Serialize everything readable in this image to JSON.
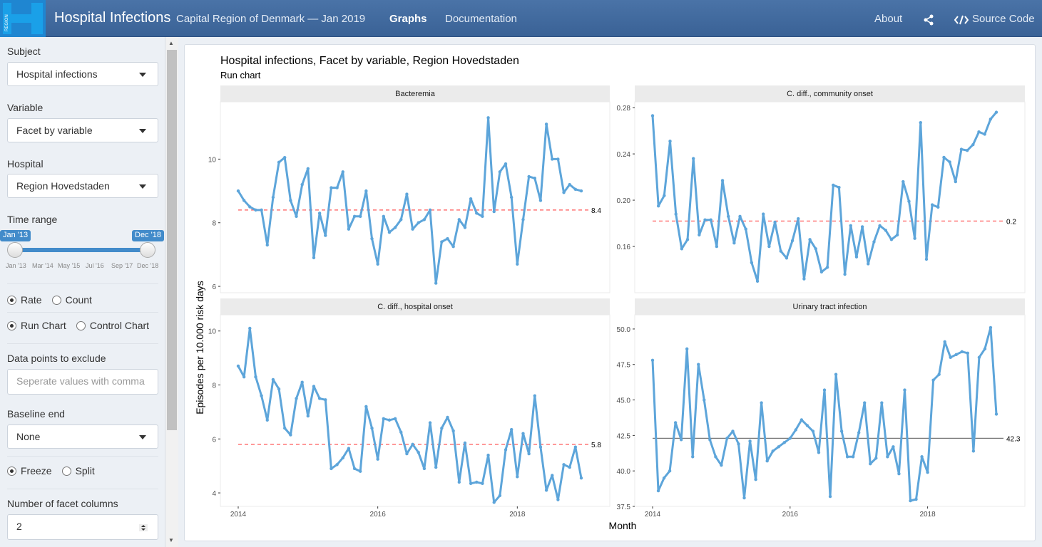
{
  "navbar": {
    "brand": "Hospital Infections",
    "subtitle": "Capital Region of Denmark — Jan 2019",
    "tabs": [
      {
        "label": "Graphs"
      },
      {
        "label": "Documentation"
      }
    ],
    "about": "About",
    "source": "Source Code",
    "logo_text": "REGION",
    "accent": "#3a6296"
  },
  "sidebar": {
    "subject_label": "Subject",
    "subject_value": "Hospital infections",
    "variable_label": "Variable",
    "variable_value": "Facet by variable",
    "hospital_label": "Hospital",
    "hospital_value": "Region Hovedstaden",
    "time_label": "Time range",
    "time_from": "Jan '13",
    "time_to": "Dec '18",
    "time_ticks": [
      "Jan '13",
      "Mar '14",
      "May '15",
      "Jul '16",
      "Sep '17",
      "Dec '18"
    ],
    "measure": [
      {
        "label": "Rate",
        "checked": true
      },
      {
        "label": "Count",
        "checked": false
      }
    ],
    "chart_type": [
      {
        "label": "Run Chart",
        "checked": true
      },
      {
        "label": "Control Chart",
        "checked": false
      }
    ],
    "exclude_label": "Data points to exclude",
    "exclude_placeholder": "Seperate values with comma",
    "baseline_label": "Baseline end",
    "baseline_value": "None",
    "freeze": [
      {
        "label": "Freeze",
        "checked": true
      },
      {
        "label": "Split",
        "checked": false
      }
    ],
    "facet_cols_label": "Number of facet columns",
    "facet_cols_value": "2"
  },
  "chart_data": {
    "type": "line",
    "title": "Hospital infections, Facet by variable, Region Hovedstaden",
    "subtitle": "Run chart",
    "xlabel": "Month",
    "ylabel": "Episodes per 10.000 risk days",
    "x_ticks": [
      "2014",
      "2016",
      "2018"
    ],
    "line_color": "#5da5da",
    "panels": [
      {
        "name": "Bacteremia",
        "ylim": [
          5.8,
          11.8
        ],
        "yticks": [
          6,
          8,
          10
        ],
        "median": 8.4,
        "median_label": "8.4",
        "median_color": "#ff5555",
        "dashed": true,
        "values": [
          9.0,
          8.7,
          8.5,
          8.4,
          8.4,
          7.3,
          8.8,
          9.9,
          10.05,
          8.7,
          8.2,
          9.2,
          9.7,
          6.9,
          8.3,
          7.6,
          9.1,
          9.1,
          9.6,
          7.8,
          8.2,
          8.2,
          9.0,
          7.5,
          6.7,
          8.2,
          7.7,
          7.85,
          8.1,
          8.9,
          7.8,
          8.0,
          8.1,
          8.4,
          6.1,
          7.4,
          7.5,
          7.25,
          8.1,
          7.85,
          8.75,
          8.3,
          8.2,
          11.3,
          8.35,
          9.6,
          9.85,
          8.8,
          6.7,
          8.1,
          9.45,
          9.4,
          8.7,
          11.1,
          10.0,
          10.0,
          8.95,
          9.2,
          9.05,
          9.0
        ]
      },
      {
        "name": "C. diff., community onset",
        "ylim": [
          0.12,
          0.285
        ],
        "yticks": [
          0.16,
          0.2,
          0.24,
          0.28
        ],
        "median": 0.182,
        "median_label": "0.2",
        "median_color": "#ff5555",
        "dashed": true,
        "values": [
          0.273,
          0.195,
          0.204,
          0.251,
          0.188,
          0.158,
          0.166,
          0.236,
          0.17,
          0.183,
          0.183,
          0.16,
          0.217,
          0.186,
          0.163,
          0.186,
          0.175,
          0.146,
          0.13,
          0.188,
          0.16,
          0.181,
          0.156,
          0.15,
          0.165,
          0.184,
          0.132,
          0.166,
          0.158,
          0.138,
          0.142,
          0.213,
          0.211,
          0.136,
          0.178,
          0.151,
          0.177,
          0.145,
          0.164,
          0.178,
          0.174,
          0.166,
          0.17,
          0.216,
          0.199,
          0.167,
          0.267,
          0.149,
          0.196,
          0.194,
          0.237,
          0.233,
          0.216,
          0.244,
          0.243,
          0.248,
          0.259,
          0.257,
          0.27,
          0.276
        ]
      },
      {
        "name": "C. diff., hospital onset",
        "ylim": [
          3.5,
          10.6
        ],
        "yticks": [
          4,
          6,
          8,
          10
        ],
        "median": 5.8,
        "median_label": "5.8",
        "median_color": "#ff5555",
        "dashed": true,
        "values": [
          8.7,
          8.3,
          10.1,
          8.3,
          7.6,
          6.7,
          8.2,
          7.85,
          6.4,
          6.15,
          7.5,
          8.1,
          6.85,
          7.95,
          7.5,
          7.45,
          4.9,
          5.05,
          5.3,
          5.65,
          4.9,
          4.8,
          7.2,
          6.4,
          5.25,
          6.75,
          6.7,
          6.75,
          6.25,
          5.45,
          5.8,
          5.5,
          4.9,
          6.6,
          4.95,
          6.4,
          6.8,
          6.3,
          4.4,
          5.85,
          4.35,
          4.4,
          4.35,
          5.4,
          3.65,
          3.9,
          5.6,
          6.35,
          4.6,
          6.2,
          5.45,
          7.6,
          5.7,
          4.1,
          4.65,
          3.75,
          5.05,
          4.95,
          5.7,
          4.55
        ]
      },
      {
        "name": "Urinary tract infection",
        "ylim": [
          37.5,
          51.0
        ],
        "yticks": [
          37.5,
          40.0,
          42.5,
          45.0,
          47.5,
          50.0
        ],
        "median": 42.3,
        "median_label": "42.3",
        "median_color": "#777777",
        "dashed": false,
        "values": [
          47.8,
          38.6,
          39.5,
          40.0,
          43.4,
          42.2,
          48.6,
          41.0,
          47.5,
          45.0,
          42.2,
          41.0,
          40.4,
          42.3,
          42.8,
          41.9,
          38.1,
          42.1,
          39.4,
          44.8,
          40.7,
          41.4,
          41.7,
          42.0,
          42.3,
          42.9,
          43.6,
          43.2,
          42.8,
          41.3,
          45.7,
          38.2,
          46.8,
          42.8,
          41.0,
          41.0,
          42.7,
          44.8,
          40.5,
          40.9,
          44.8,
          41.0,
          41.7,
          39.8,
          45.7,
          37.9,
          38.0,
          41.0,
          39.9,
          46.4,
          46.8,
          49.1,
          48.0,
          48.2,
          48.4,
          48.3,
          41.4,
          48.0,
          48.6,
          50.1,
          44.0
        ]
      }
    ]
  }
}
